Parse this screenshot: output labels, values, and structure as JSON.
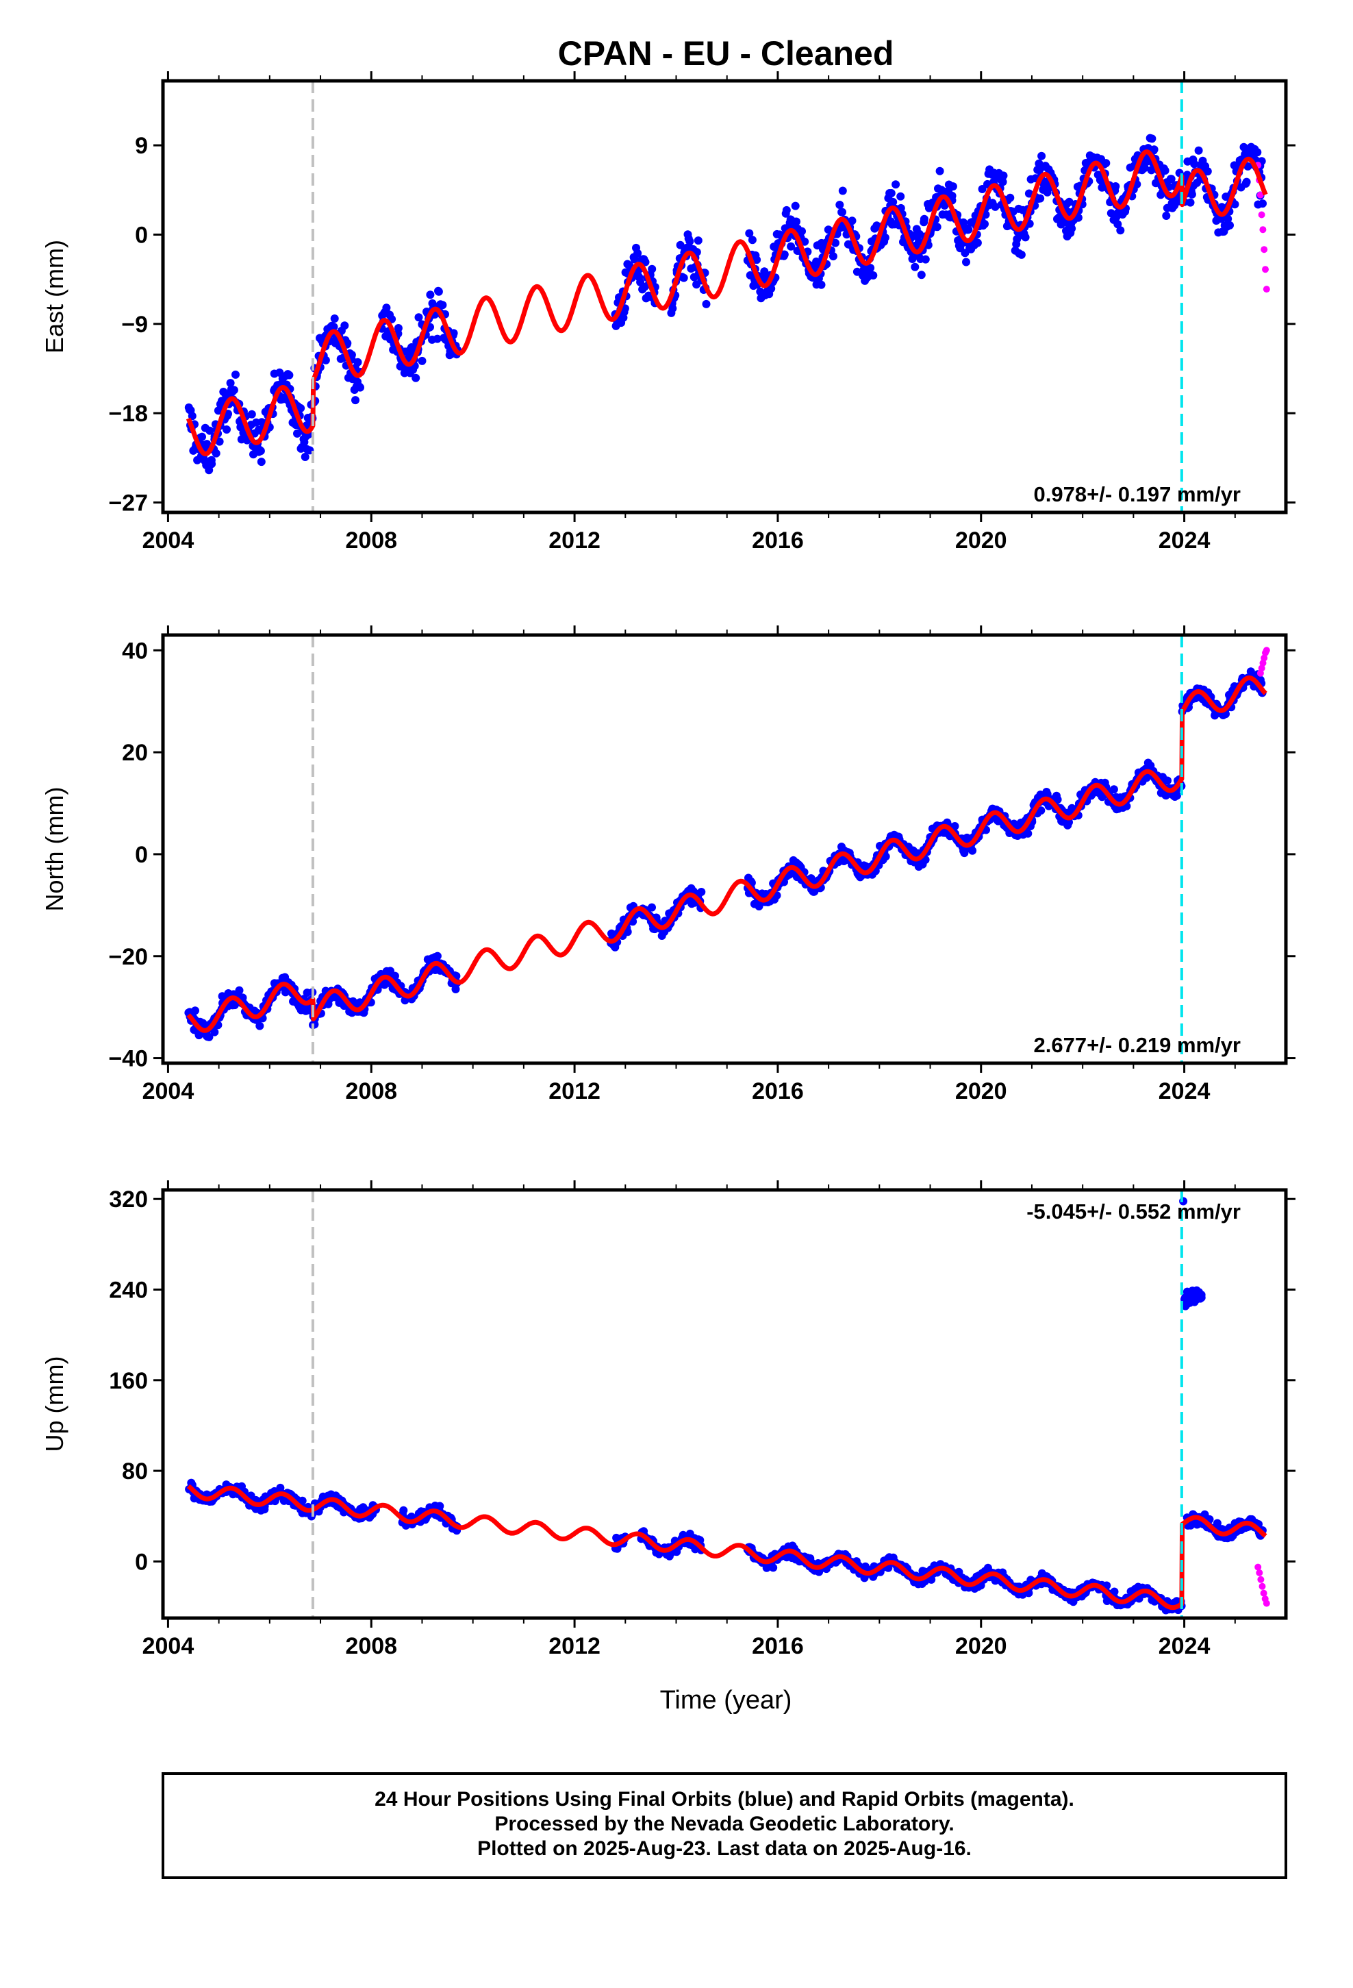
{
  "chart_data": {
    "type": "scatter",
    "title": "CPAN  - EU - Cleaned",
    "xlabel": "Time (year)",
    "xlim": [
      2003.9,
      2026.0
    ],
    "xticks": [
      "2004",
      "2008",
      "2012",
      "2016",
      "2020",
      "2024"
    ],
    "xtick_values": [
      2004,
      2008,
      2012,
      2016,
      2020,
      2024
    ],
    "colors": {
      "final_orbits": "#0000ff",
      "rapid_orbits": "#ff00ff",
      "model_fit": "#ff0000",
      "equipment_change": "#c0c0c0",
      "earthquake_offset": "#00e5ee"
    },
    "vertical_lines": {
      "gray_dashed": 2006.85,
      "cyan_dashed": 2023.95
    },
    "panels": [
      {
        "name": "East",
        "ylabel": "East (mm)",
        "ylim": [
          -28.0,
          15.5
        ],
        "yticks": [
          "9",
          "0",
          "−9",
          "−18",
          "−27"
        ],
        "ytick_values": [
          9,
          0,
          -9,
          -18,
          -27
        ],
        "rate_label": "0.978+/- 0.197 mm/yr",
        "rate_position": "bottom-right",
        "trend": {
          "start_year": 2004.4,
          "start_value": -20.0,
          "end_year": 2025.6,
          "end_value": 4.0
        },
        "seasonal_amplitude_mm": 2.5,
        "steps": [
          {
            "year": 2006.85,
            "offset": 4.5
          },
          {
            "year": 2023.95,
            "offset": -3.0
          }
        ],
        "data_segments": [
          [
            2004.4,
            2006.9
          ],
          [
            2006.9,
            2007.8
          ],
          [
            2008.2,
            2009.7
          ],
          [
            2012.8,
            2013.6
          ],
          [
            2013.9,
            2014.6
          ],
          [
            2015.4,
            2023.95
          ],
          [
            2023.95,
            2025.55
          ]
        ],
        "data_scatter_mm": 3.0,
        "rapid_orbits": {
          "start_year": 2025.45,
          "end_year": 2025.62,
          "values": [
            7.0,
            5.5,
            4.0,
            2.0,
            0.5,
            -1.5,
            -3.5,
            -5.5
          ]
        }
      },
      {
        "name": "North",
        "ylabel": "North (mm)",
        "ylim": [
          -41.0,
          43.0
        ],
        "yticks": [
          "40",
          "20",
          "0",
          "−20",
          "−40"
        ],
        "ytick_values": [
          40,
          20,
          0,
          -20,
          -40
        ],
        "rate_label": "2.677+/- 0.219 mm/yr",
        "rate_position": "bottom-right",
        "trend": {
          "start_year": 2004.4,
          "start_value": -33.0,
          "end_year": 2025.6,
          "end_value": 24.0
        },
        "seasonal_amplitude_mm": 2.5,
        "steps": [
          {
            "year": 2006.85,
            "offset": -4.0
          },
          {
            "year": 2023.95,
            "offset": 13.0
          }
        ],
        "data_segments": [
          [
            2004.4,
            2006.9
          ],
          [
            2006.9,
            2008.6
          ],
          [
            2008.6,
            2009.7
          ],
          [
            2012.7,
            2013.2
          ],
          [
            2013.3,
            2014.5
          ],
          [
            2015.4,
            2023.95
          ],
          [
            2023.95,
            2025.55
          ]
        ],
        "data_scatter_mm": 2.2,
        "rapid_orbits": {
          "start_year": 2025.5,
          "end_year": 2025.62,
          "values": [
            35.5,
            36.5,
            37.5,
            38.5,
            39.5,
            40.0
          ]
        }
      },
      {
        "name": "Up",
        "ylabel": "Up (mm)",
        "ylim": [
          -50.0,
          328.0
        ],
        "yticks": [
          "320",
          "240",
          "160",
          "80",
          "0"
        ],
        "ytick_values": [
          320,
          240,
          160,
          80,
          0
        ],
        "rate_label": "-5.045+/- 0.552 mm/yr",
        "rate_position": "top-right",
        "trend": {
          "start_year": 2004.4,
          "start_value": 63.0,
          "end_year": 2025.6,
          "end_value": -44.0
        },
        "seasonal_amplitude_mm": 6.0,
        "steps": [
          {
            "year": 2023.95,
            "offset": 70.0
          }
        ],
        "data_segments": [
          [
            2004.4,
            2006.9
          ],
          [
            2006.9,
            2008.1
          ],
          [
            2008.6,
            2009.7
          ],
          [
            2012.8,
            2013.0
          ],
          [
            2013.3,
            2014.5
          ],
          [
            2015.4,
            2023.95
          ],
          [
            2024.05,
            2025.55
          ]
        ],
        "data_scatter_mm": 7.0,
        "outlier_cluster": {
          "start_year": 2024.0,
          "end_year": 2024.35,
          "center_mm": 234,
          "spread_mm": 10
        },
        "outlier_point": {
          "year": 2023.98,
          "value": 318
        },
        "rapid_orbits": {
          "start_year": 2025.45,
          "end_year": 2025.62,
          "values": [
            -5.0,
            -10.0,
            -16.0,
            -22.0,
            -28.0,
            -33.0,
            -37.0
          ]
        }
      }
    ],
    "footer": [
      "24 Hour Positions Using Final Orbits (blue) and Rapid Orbits (magenta).",
      "Processed by the Nevada Geodetic Laboratory.",
      "Plotted on 2025-Aug-23. Last data on 2025-Aug-16."
    ]
  }
}
